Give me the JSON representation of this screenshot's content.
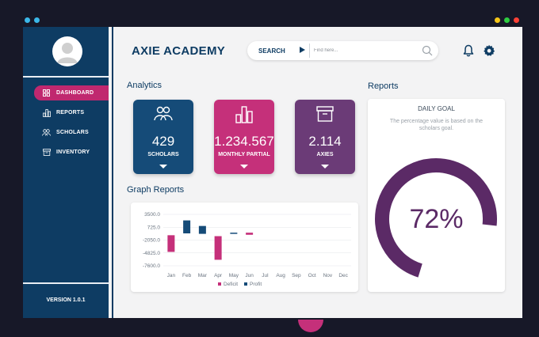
{
  "app": {
    "title": "AXIE ACADEMY"
  },
  "search": {
    "button_label": "SEARCH",
    "placeholder": "Find here..."
  },
  "sidebar": {
    "items": [
      {
        "label": "DASHBOARD",
        "icon": "dashboard-icon",
        "active": true
      },
      {
        "label": "REPORTS",
        "icon": "bar-chart-icon",
        "active": false
      },
      {
        "label": "SCHOLARS",
        "icon": "users-icon",
        "active": false
      },
      {
        "label": "INVENTORY",
        "icon": "archive-icon",
        "active": false
      }
    ],
    "version": "VERSION 1.0.1"
  },
  "analytics": {
    "title": "Analytics",
    "tiles": [
      {
        "value": "429",
        "label": "SCHOLARS",
        "icon": "users-icon",
        "color": "#154b78"
      },
      {
        "value": "1.234.567",
        "label": "MONTHLY PARTIAL",
        "icon": "bar-chart-icon",
        "color": "#c5307a"
      },
      {
        "value": "2.114",
        "label": "AXIES",
        "icon": "archive-icon",
        "color": "#6b3b77"
      }
    ]
  },
  "graph": {
    "title": "Graph Reports"
  },
  "reports": {
    "title": "Reports",
    "card_title": "DAILY GOAL",
    "description": "The percentage value is based on the scholars goal.",
    "percent_label": "72%",
    "percent_value": 0.72,
    "ring_color": "#5b2a66"
  },
  "colors": {
    "primary": "#0e3c63",
    "accent": "#c0286f",
    "deficit": "#c5307a",
    "profit": "#154b78"
  },
  "chart_data": {
    "type": "bar",
    "categories": [
      "Jan",
      "Feb",
      "Mar",
      "Apr",
      "May",
      "Jun",
      "Jul",
      "Aug",
      "Sep",
      "Oct",
      "Nov",
      "Dec"
    ],
    "y_ticks": [
      "3500.0",
      "725.0",
      "-2050.0",
      "-4825.0",
      "-7600.0"
    ],
    "ylim": [
      -7600,
      3500
    ],
    "legend": [
      "Deficit",
      "Profit"
    ],
    "legend_position": "bottom",
    "grid": true,
    "series": [
      {
        "name": "Deficit",
        "kind": "deficit",
        "bars": [
          {
            "category": "Jan",
            "start": -1000,
            "end": -4600
          },
          {
            "category": "Apr",
            "start": -1200,
            "end": -6300
          },
          {
            "category": "Jun",
            "start": -450,
            "end": -900
          }
        ]
      },
      {
        "name": "Profit",
        "kind": "profit",
        "bars": [
          {
            "category": "Feb",
            "start": 2200,
            "end": -600
          },
          {
            "category": "Mar",
            "start": 1000,
            "end": -700
          },
          {
            "category": "May",
            "start": -450,
            "end": -600
          }
        ]
      }
    ]
  }
}
